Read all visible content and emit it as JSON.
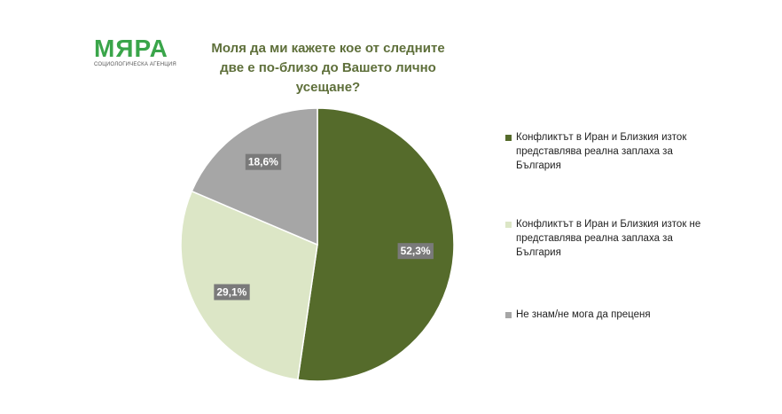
{
  "logo": {
    "name": "МЯРА",
    "tagline": "СОЦИОЛОГИЧЕСКА АГЕНЦИЯ"
  },
  "chart_data": {
    "type": "pie",
    "title": "Моля да ми кажете кое от следните две е по-близо до Вашето лично усещане?",
    "categories": [
      "Конфликтът в Иран и Близкия изток представлява реална заплаха за България",
      "Конфликтът в Иран и Близкия изток не представлява реална заплаха за България",
      "Не знам/не мога да преценя"
    ],
    "values": [
      52.3,
      29.1,
      18.6
    ],
    "value_labels": [
      "52,3%",
      "29,1%",
      "18,6%"
    ],
    "colors": [
      "#556b2b",
      "#dce6c6",
      "#a6a6a6"
    ],
    "legend": "right"
  }
}
